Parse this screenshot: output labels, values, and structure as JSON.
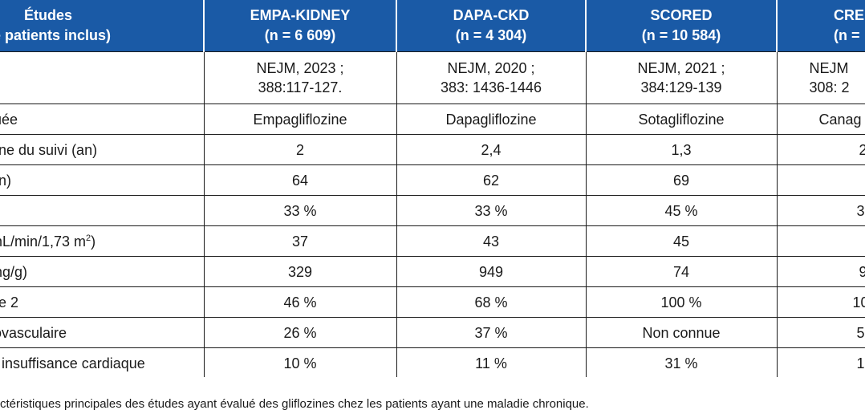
{
  "table": {
    "header": {
      "col0_line1": "Études",
      "col0_line2": "re de patients inclus)",
      "studies": [
        {
          "name": "EMPA-KIDNEY",
          "n": "(n = 6 609)"
        },
        {
          "name": "DAPA-CKD",
          "n": "(n = 4 304)"
        },
        {
          "name": "SCORED",
          "n": "(n = 10 584)"
        },
        {
          "name": "CREI",
          "n": "(n ="
        }
      ]
    },
    "refs": [
      {
        "line1": "NEJM, 2023 ;",
        "line2": "388:117-127."
      },
      {
        "line1": "NEJM, 2020 ;",
        "line2": "383: 1436-1446"
      },
      {
        "line1": "NEJM, 2021 ;",
        "line2": "384:129-139"
      },
      {
        "line1": "NEJM",
        "line2": "308: 2"
      }
    ],
    "rows": [
      {
        "label": "luée",
        "values": [
          "Empagliflozine",
          "Dapagliflozine",
          "Sotagliflozine",
          "Canag"
        ]
      },
      {
        "label": "nne du suivi (an)",
        "values": [
          "2",
          "2,4",
          "1,3",
          "2"
        ]
      },
      {
        "label": "an)",
        "values": [
          "64",
          "62",
          "69",
          ""
        ]
      },
      {
        "label": "",
        "values": [
          "33 %",
          "33 %",
          "45 %",
          "3"
        ]
      },
      {
        "label": "mL/min/1,73 m",
        "label_sup": "2",
        "label_after": ")",
        "values": [
          "37",
          "43",
          "45",
          ""
        ]
      },
      {
        "label": "mg/g)",
        "values": [
          "329",
          "949",
          "74",
          "9"
        ]
      },
      {
        "label": "pe 2",
        "values": [
          "46 %",
          "68 %",
          "100 %",
          "10"
        ]
      },
      {
        "label": "iovasculaire",
        "values": [
          "26 %",
          "37 %",
          "Non connue",
          "5"
        ]
      },
      {
        "label": "c insuffisance cardiaque",
        "values": [
          "10 %",
          "11 %",
          "31 %",
          "1"
        ]
      }
    ]
  },
  "caption": "ctéristiques principales des études ayant évalué des gliflozines chez les patients ayant une maladie chronique."
}
